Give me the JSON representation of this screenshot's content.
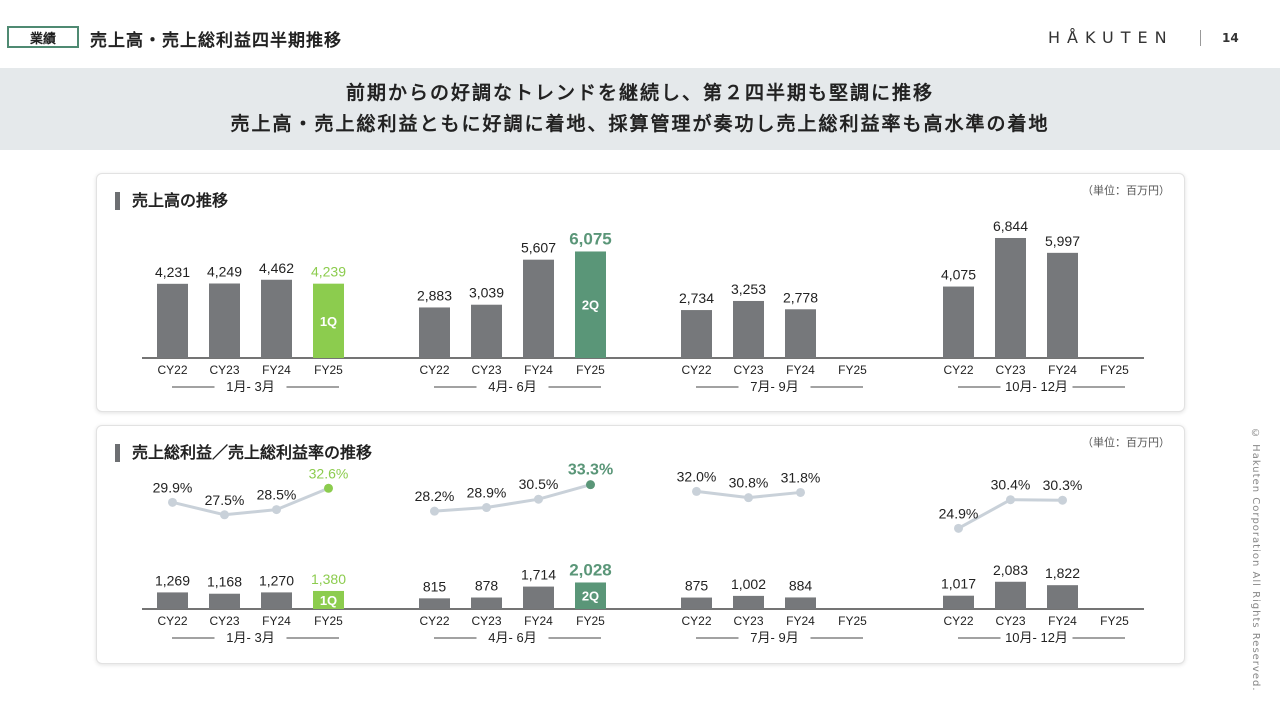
{
  "header": {
    "tag": "業績",
    "title": "売上高・売上総利益四半期推移",
    "logo": "HÅKUTEN",
    "page_number": "14"
  },
  "banner": {
    "line1": "前期からの好調なトレンドを継続し、第２四半期も堅調に推移",
    "line2": "売上高・売上総利益ともに好調に着地、採算管理が奏功し売上総利益率も高水準の着地"
  },
  "copyright": "© Hakuten Corporation All Rights Reserved.",
  "colors": {
    "bar": "#76787b",
    "q1_highlight": "#8ccc4e",
    "q2_highlight": "#5a9678",
    "line": "#c9d1d9"
  },
  "chart_data": [
    {
      "type": "bar",
      "title": "売上高の推移",
      "unit": "（単位：百万円）",
      "categories": [
        "CY22",
        "CY23",
        "FY24",
        "FY25"
      ],
      "groups": [
        {
          "label": "1月- 3月",
          "values": [
            4231,
            4249,
            4462,
            4239
          ],
          "labels": [
            "4,231",
            "4,249",
            "4,462",
            "4,239"
          ],
          "highlight_index": 3,
          "highlight_label": "1Q",
          "highlight_color": "#8ccc4e"
        },
        {
          "label": "4月- 6月",
          "values": [
            2883,
            3039,
            5607,
            6075
          ],
          "labels": [
            "2,883",
            "3,039",
            "5,607",
            "6,075"
          ],
          "highlight_index": 3,
          "highlight_label": "2Q",
          "highlight_color": "#5a9678"
        },
        {
          "label": "7月- 9月",
          "values": [
            2734,
            3253,
            2778,
            null
          ],
          "labels": [
            "2,734",
            "3,253",
            "2,778",
            ""
          ],
          "highlight_index": null
        },
        {
          "label": "10月- 12月",
          "values": [
            4075,
            6844,
            5997,
            null
          ],
          "labels": [
            "4,075",
            "6,844",
            "5,997",
            ""
          ],
          "highlight_index": null
        }
      ],
      "ylim": [
        0,
        7300
      ]
    },
    {
      "type": "bar+line",
      "title": "売上総利益／売上総利益率の推移",
      "unit": "（単位：百万円）",
      "categories": [
        "CY22",
        "CY23",
        "FY24",
        "FY25"
      ],
      "groups": [
        {
          "label": "1月- 3月",
          "values": [
            1269,
            1168,
            1270,
            1380
          ],
          "labels": [
            "1,269",
            "1,168",
            "1,270",
            "1,380"
          ],
          "rates": [
            29.9,
            27.5,
            28.5,
            32.6
          ],
          "rate_labels": [
            "29.9%",
            "27.5%",
            "28.5%",
            "32.6%"
          ],
          "highlight_index": 3,
          "highlight_label": "1Q",
          "highlight_color": "#8ccc4e"
        },
        {
          "label": "4月- 6月",
          "values": [
            815,
            878,
            1714,
            2028
          ],
          "labels": [
            "815",
            "878",
            "1,714",
            "2,028"
          ],
          "rates": [
            28.2,
            28.9,
            30.5,
            33.3
          ],
          "rate_labels": [
            "28.2%",
            "28.9%",
            "30.5%",
            "33.3%"
          ],
          "highlight_index": 3,
          "highlight_label": "2Q",
          "highlight_color": "#5a9678"
        },
        {
          "label": "7月- 9月",
          "values": [
            875,
            1002,
            884,
            null
          ],
          "labels": [
            "875",
            "1,002",
            "884",
            ""
          ],
          "rates": [
            32.0,
            30.8,
            31.8,
            null
          ],
          "rate_labels": [
            "32.0%",
            "30.8%",
            "31.8%",
            ""
          ],
          "highlight_index": null
        },
        {
          "label": "10月- 12月",
          "values": [
            1017,
            2083,
            1822,
            null
          ],
          "labels": [
            "1,017",
            "2,083",
            "1,822",
            ""
          ],
          "rates": [
            24.9,
            30.4,
            30.3,
            null
          ],
          "rate_labels": [
            "24.9%",
            "30.4%",
            "30.3%",
            ""
          ],
          "highlight_index": null
        }
      ],
      "ylim": [
        0,
        2600
      ],
      "rate_range": [
        24,
        34
      ]
    }
  ]
}
